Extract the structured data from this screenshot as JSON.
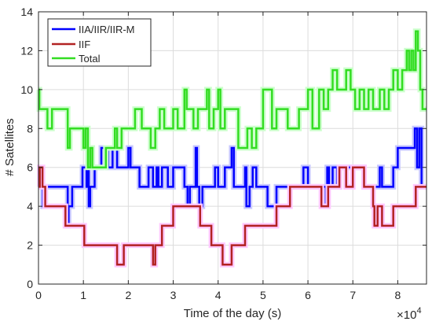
{
  "chart_data": {
    "type": "line",
    "step": true,
    "xlabel": "Time of the day (s)",
    "ylabel": "# Satellites",
    "x_exponent_label": "×10",
    "x_exponent": "4",
    "xlim": [
      0,
      86400
    ],
    "ylim": [
      0,
      14
    ],
    "xticks": [
      0,
      10000,
      20000,
      30000,
      40000,
      50000,
      60000,
      70000,
      80000
    ],
    "xtick_labels": [
      "0",
      "1",
      "2",
      "3",
      "4",
      "5",
      "6",
      "7",
      "8"
    ],
    "yticks": [
      0,
      2,
      4,
      6,
      8,
      10,
      12,
      14
    ],
    "ytick_labels": [
      "0",
      "2",
      "4",
      "6",
      "8",
      "10",
      "12",
      "14"
    ],
    "grid": true,
    "legend_position": "top-left",
    "series": [
      {
        "name": "IIA/IIR/IIR-M",
        "color": "#0000ff",
        "glow": "#c8c8ff",
        "x": [
          0,
          1000,
          1500,
          6500,
          6700,
          7500,
          9800,
          10700,
          11000,
          11200,
          11500,
          12500,
          14000,
          15500,
          16500,
          17500,
          20000,
          20500,
          22500,
          24500,
          25500,
          26300,
          26700,
          27500,
          28800,
          30000,
          32500,
          33200,
          33700,
          35000,
          35300,
          35800,
          36500,
          37500,
          38500,
          39300,
          40000,
          41500,
          43000,
          43500,
          46000,
          46300,
          47000,
          47700,
          48500,
          50000,
          51000,
          53000,
          58500,
          59000,
          60000,
          62500,
          64000,
          64300,
          64700,
          65500,
          66500,
          67000,
          71500,
          72500,
          73000,
          75000,
          76000,
          76500,
          79000,
          80000,
          81500,
          82000,
          83000,
          83800,
          84300,
          84800,
          85300,
          86400
        ],
        "y": [
          5,
          4,
          5,
          3,
          4,
          5,
          6,
          5,
          7,
          4,
          5,
          6,
          7,
          6,
          7,
          6,
          7,
          6,
          5,
          6,
          5,
          6,
          5,
          6,
          5,
          6,
          5,
          4,
          5,
          7,
          5,
          4,
          5,
          5,
          5,
          6,
          5,
          6,
          7,
          5,
          6,
          4,
          5,
          6,
          5,
          5,
          4,
          5,
          5,
          6,
          5,
          5,
          4,
          6,
          5,
          6,
          5,
          6,
          6,
          5,
          5,
          5,
          6,
          5,
          6,
          7,
          7,
          7,
          7,
          8,
          6,
          8,
          5,
          5
        ]
      },
      {
        "name": "IIF",
        "color": "#b22222",
        "glow": "#ffc8ff",
        "x": [
          0,
          300,
          900,
          1500,
          3000,
          6000,
          9300,
          10200,
          12500,
          17500,
          19000,
          21000,
          25500,
          26000,
          26500,
          27500,
          30000,
          31000,
          36000,
          38500,
          39500,
          40000,
          41000,
          43000,
          44500,
          46000,
          51000,
          53000,
          55000,
          56000,
          61000,
          62000,
          63000,
          64500,
          65000,
          67000,
          68500,
          69000,
          70000,
          71500,
          72500,
          74500,
          74800,
          75500,
          76000,
          76500,
          78500,
          79000,
          80500,
          82000,
          84000,
          86400
        ],
        "y": [
          5,
          6,
          5,
          4,
          4,
          3,
          3,
          2,
          2,
          1,
          2,
          2,
          1,
          2,
          2,
          3,
          4,
          4,
          3,
          2,
          2,
          2,
          1,
          2,
          2,
          3,
          3,
          4,
          4,
          5,
          5,
          5,
          4,
          5,
          5,
          6,
          5,
          5,
          6,
          6,
          5,
          4,
          3,
          4,
          4,
          3,
          3,
          4,
          4,
          4,
          5,
          5
        ]
      },
      {
        "name": "Total",
        "color": "#33dd22",
        "glow": "#ccffcc",
        "x": [
          0,
          200,
          700,
          2000,
          3000,
          6500,
          7000,
          9500,
          10000,
          10500,
          11000,
          11500,
          12000,
          15000,
          16000,
          17000,
          17500,
          18500,
          21500,
          23000,
          25000,
          26000,
          27000,
          28000,
          30000,
          31000,
          32500,
          33000,
          34500,
          35500,
          37500,
          38000,
          39000,
          40000,
          40500,
          41500,
          42500,
          44500,
          46500,
          47500,
          48500,
          50000,
          52000,
          53000,
          54000,
          55500,
          58000,
          60000,
          61000,
          62500,
          63500,
          64500,
          65500,
          66500,
          67500,
          68500,
          69500,
          70500,
          71500,
          72500,
          73500,
          74500,
          76000,
          77000,
          78000,
          79000,
          80000,
          81000,
          82000,
          82500,
          83000,
          83500,
          84000,
          84500,
          85000,
          85500,
          86400
        ],
        "y": [
          10,
          9,
          9,
          8,
          9,
          7,
          8,
          8,
          7,
          8,
          6,
          7,
          6,
          7,
          7,
          8,
          7,
          8,
          9,
          8,
          7,
          8,
          9,
          8,
          9,
          8,
          10,
          9,
          8,
          9,
          10,
          8,
          9,
          10,
          8,
          9,
          9,
          7,
          8,
          7,
          8,
          10,
          8,
          9,
          9,
          8,
          9,
          10,
          8,
          10,
          9,
          10,
          11,
          10,
          10,
          11,
          10,
          9,
          10,
          9,
          10,
          9,
          10,
          9,
          10,
          11,
          10,
          11,
          12,
          11,
          12,
          11,
          13,
          12,
          10,
          9,
          9
        ]
      }
    ]
  }
}
